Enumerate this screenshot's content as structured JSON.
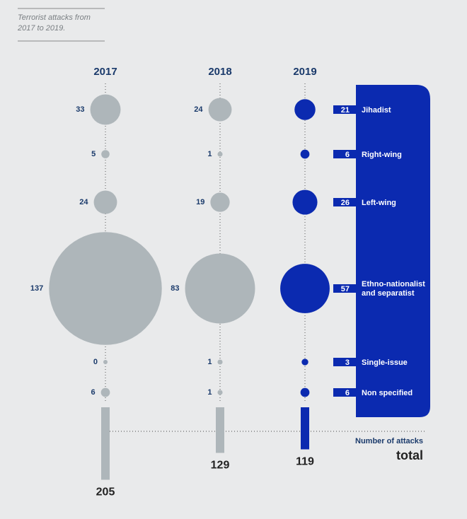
{
  "chart_data": {
    "type": "bubble",
    "title": "Terrorist attacks from 2017 to 2019.",
    "categories": [
      "Jihadist",
      "Right-wing",
      "Left-wing",
      "Ethno-nationalist and separatist",
      "Single-issue",
      "Non specified"
    ],
    "series": [
      {
        "name": "2017",
        "color": "#aeb6ba",
        "values": [
          33,
          5,
          24,
          137,
          0,
          6
        ],
        "total": 205
      },
      {
        "name": "2018",
        "color": "#aeb6ba",
        "values": [
          24,
          1,
          19,
          83,
          1,
          1
        ],
        "total": 129
      },
      {
        "name": "2019",
        "color": "#0b2ab0",
        "values": [
          21,
          6,
          26,
          57,
          3,
          6
        ],
        "total": 119
      }
    ],
    "total_label": "Number of attacks",
    "total_caption": "total"
  }
}
